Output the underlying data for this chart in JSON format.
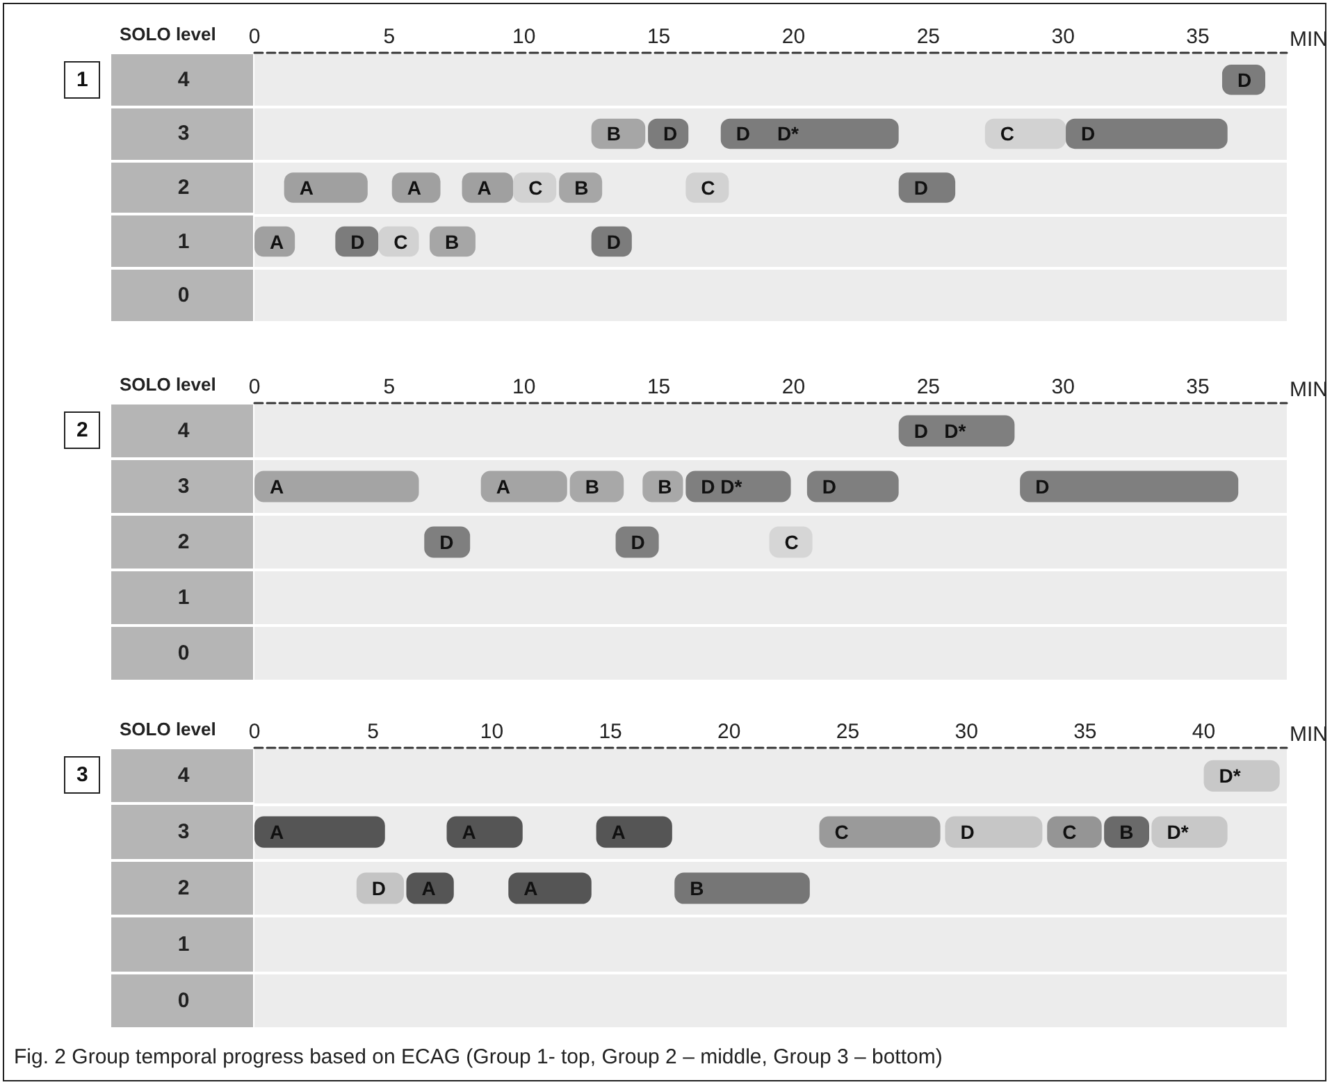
{
  "chart_data": [
    {
      "type": "bar",
      "orientation": "horizontal",
      "title": "1",
      "xlabel": "MIN",
      "ylabel": "SOLO level",
      "categories": [
        "4",
        "3",
        "2",
        "1",
        "0"
      ],
      "xlim": [
        0,
        38.3
      ],
      "xticks": [
        0,
        5,
        10,
        15,
        20,
        25,
        30,
        35
      ],
      "grid": "y",
      "series": [
        {
          "values": [
            1.6,
            2.0,
            3.1,
            1.5,
            null
          ],
          "base": [
            35.9,
            12.5,
            1.1,
            0,
            null
          ],
          "colors": [
            "#7c7c7c",
            "#a6a6a6",
            "#a0a0a0",
            "#a0a0a0",
            null
          ],
          "value_labels": [
            "D",
            "B",
            "A",
            "A",
            null
          ]
        },
        {
          "values": [
            null,
            1.5,
            1.8,
            1.6,
            null
          ],
          "base": [
            null,
            14.6,
            5.1,
            3.0,
            null
          ],
          "colors": [
            null,
            "#7c7c7c",
            "#a0a0a0",
            "#7c7c7c",
            null
          ],
          "value_labels": [
            null,
            "D",
            "A",
            "D",
            null
          ]
        },
        {
          "values": [
            null,
            6.6,
            1.9,
            1.5,
            null
          ],
          "base": [
            null,
            17.3,
            7.7,
            4.6,
            null
          ],
          "colors": [
            null,
            "#7c7c7c",
            "#a0a0a0",
            "#d2d2d2",
            null
          ],
          "value_labels": [
            null,
            "D     D*",
            "A",
            "C",
            null
          ]
        },
        {
          "values": [
            null,
            3.0,
            1.6,
            1.7,
            null
          ],
          "base": [
            null,
            27.1,
            9.6,
            6.5,
            null
          ],
          "colors": [
            null,
            "#d2d2d2",
            "#d2d2d2",
            "#a6a6a6",
            null
          ],
          "value_labels": [
            null,
            "C",
            "C",
            "B",
            null
          ]
        },
        {
          "values": [
            null,
            6.0,
            1.6,
            1.5,
            null
          ],
          "base": [
            null,
            30.1,
            11.3,
            12.5,
            null
          ],
          "colors": [
            null,
            "#7c7c7c",
            "#a6a6a6",
            "#7c7c7c",
            null
          ],
          "value_labels": [
            null,
            "D",
            "B",
            "D",
            null
          ]
        },
        {
          "values": [
            null,
            null,
            1.6,
            null,
            null
          ],
          "base": [
            null,
            null,
            16.0,
            null,
            null
          ],
          "colors": [
            null,
            null,
            "#d2d2d2",
            null,
            null
          ],
          "value_labels": [
            null,
            null,
            "C",
            null,
            null
          ]
        },
        {
          "values": [
            null,
            null,
            2.1,
            null,
            null
          ],
          "base": [
            null,
            null,
            23.9,
            null,
            null
          ],
          "colors": [
            null,
            null,
            "#7c7c7c",
            null,
            null
          ],
          "value_labels": [
            null,
            null,
            "D",
            null,
            null
          ]
        }
      ]
    },
    {
      "type": "bar",
      "orientation": "horizontal",
      "title": "2",
      "xlabel": "MIN",
      "ylabel": "SOLO level",
      "categories": [
        "4",
        "3",
        "2",
        "1",
        "0"
      ],
      "xlim": [
        0,
        38.3
      ],
      "xticks": [
        0,
        5,
        10,
        15,
        20,
        25,
        30,
        35
      ],
      "grid": "y",
      "series": [
        {
          "values": [
            4.3,
            6.1,
            1.7,
            null,
            null
          ],
          "base": [
            23.9,
            0,
            6.3,
            null,
            null
          ],
          "colors": [
            "#7f7f7f",
            "#a4a4a4",
            "#7f7f7f",
            null,
            null
          ],
          "value_labels": [
            "D   D*",
            "A",
            "D",
            null,
            null
          ]
        },
        {
          "values": [
            null,
            3.2,
            1.6,
            null,
            null
          ],
          "base": [
            null,
            8.4,
            13.4,
            null,
            null
          ],
          "colors": [
            null,
            "#a4a4a4",
            "#7f7f7f",
            null,
            null
          ],
          "value_labels": [
            null,
            "A",
            "D",
            null,
            null
          ]
        },
        {
          "values": [
            null,
            2.0,
            1.6,
            null,
            null
          ],
          "base": [
            null,
            11.7,
            19.1,
            null,
            null
          ],
          "colors": [
            null,
            "#a8a8a8",
            "#d6d6d6",
            null,
            null
          ],
          "value_labels": [
            null,
            "B",
            "C",
            null,
            null
          ]
        },
        {
          "values": [
            null,
            1.5,
            null,
            null,
            null
          ],
          "base": [
            null,
            14.4,
            null,
            null,
            null
          ],
          "colors": [
            null,
            "#a8a8a8",
            null,
            null,
            null
          ],
          "value_labels": [
            null,
            "B",
            null,
            null,
            null
          ]
        },
        {
          "values": [
            null,
            3.9,
            null,
            null,
            null
          ],
          "base": [
            null,
            16.0,
            null,
            null,
            null
          ],
          "colors": [
            null,
            "#7f7f7f",
            null,
            null,
            null
          ],
          "value_labels": [
            null,
            "D D*",
            null,
            null,
            null
          ]
        },
        {
          "values": [
            null,
            3.4,
            null,
            null,
            null
          ],
          "base": [
            null,
            20.5,
            null,
            null,
            null
          ],
          "colors": [
            null,
            "#7f7f7f",
            null,
            null,
            null
          ],
          "value_labels": [
            null,
            "D",
            null,
            null,
            null
          ]
        },
        {
          "values": [
            null,
            8.1,
            null,
            null,
            null
          ],
          "base": [
            null,
            28.4,
            null,
            null,
            null
          ],
          "colors": [
            null,
            "#7f7f7f",
            null,
            null,
            null
          ],
          "value_labels": [
            null,
            "D",
            null,
            null,
            null
          ]
        }
      ]
    },
    {
      "type": "bar",
      "orientation": "horizontal",
      "title": "3",
      "xlabel": "MIN",
      "ylabel": "SOLO level",
      "categories": [
        "4",
        "3",
        "2",
        "1",
        "0"
      ],
      "xlim": [
        0,
        43.5
      ],
      "xticks": [
        0,
        5,
        10,
        15,
        20,
        25,
        30,
        35,
        40
      ],
      "grid": "y",
      "annotations": [
        "Fig. 2 Group temporal progress based on ECAG (Group 1- top, Group 2 – middle, Group 3 – bottom)"
      ],
      "series": [
        {
          "values": [
            3.2,
            5.5,
            2.0,
            null,
            null
          ],
          "base": [
            40.0,
            0,
            4.3,
            null,
            null
          ],
          "colors": [
            "#c8c8c8",
            "#555555",
            "#c4c4c4",
            null,
            null
          ],
          "value_labels": [
            "D*",
            "A",
            "D",
            null,
            null
          ]
        },
        {
          "values": [
            null,
            3.2,
            2.0,
            null,
            null
          ],
          "base": [
            null,
            8.1,
            6.4,
            null,
            null
          ],
          "colors": [
            null,
            "#555555",
            "#555555",
            null,
            null
          ],
          "value_labels": [
            null,
            "A",
            "A",
            null,
            null
          ]
        },
        {
          "values": [
            null,
            3.2,
            3.5,
            null,
            null
          ],
          "base": [
            null,
            14.4,
            10.7,
            null,
            null
          ],
          "colors": [
            null,
            "#555555",
            "#555555",
            null,
            null
          ],
          "value_labels": [
            null,
            "A",
            "A",
            null,
            null
          ]
        },
        {
          "values": [
            null,
            5.1,
            5.7,
            null,
            null
          ],
          "base": [
            null,
            23.8,
            17.7,
            null,
            null
          ],
          "colors": [
            null,
            "#9a9a9a",
            "#767676",
            null,
            null
          ],
          "value_labels": [
            null,
            "C",
            "B",
            null,
            null
          ]
        },
        {
          "values": [
            null,
            4.1,
            null,
            null,
            null
          ],
          "base": [
            null,
            29.1,
            null,
            null,
            null
          ],
          "colors": [
            null,
            "#c6c6c6",
            null,
            null,
            null
          ],
          "value_labels": [
            null,
            "D",
            null,
            null,
            null
          ]
        },
        {
          "values": [
            null,
            2.3,
            null,
            null,
            null
          ],
          "base": [
            null,
            33.4,
            null,
            null,
            null
          ],
          "colors": [
            null,
            "#959595",
            null,
            null,
            null
          ],
          "value_labels": [
            null,
            "C",
            null,
            null,
            null
          ]
        },
        {
          "values": [
            null,
            1.9,
            null,
            null,
            null
          ],
          "base": [
            null,
            35.8,
            null,
            null,
            null
          ],
          "colors": [
            null,
            "#6a6a6a",
            null,
            null,
            null
          ],
          "value_labels": [
            null,
            "B",
            null,
            null,
            null
          ]
        },
        {
          "values": [
            null,
            3.2,
            null,
            null,
            null
          ],
          "base": [
            null,
            37.8,
            null,
            null,
            null
          ],
          "colors": [
            null,
            "#c8c8c8",
            null,
            null,
            null
          ],
          "value_labels": [
            null,
            "D*",
            null,
            null,
            null
          ]
        }
      ]
    }
  ]
}
